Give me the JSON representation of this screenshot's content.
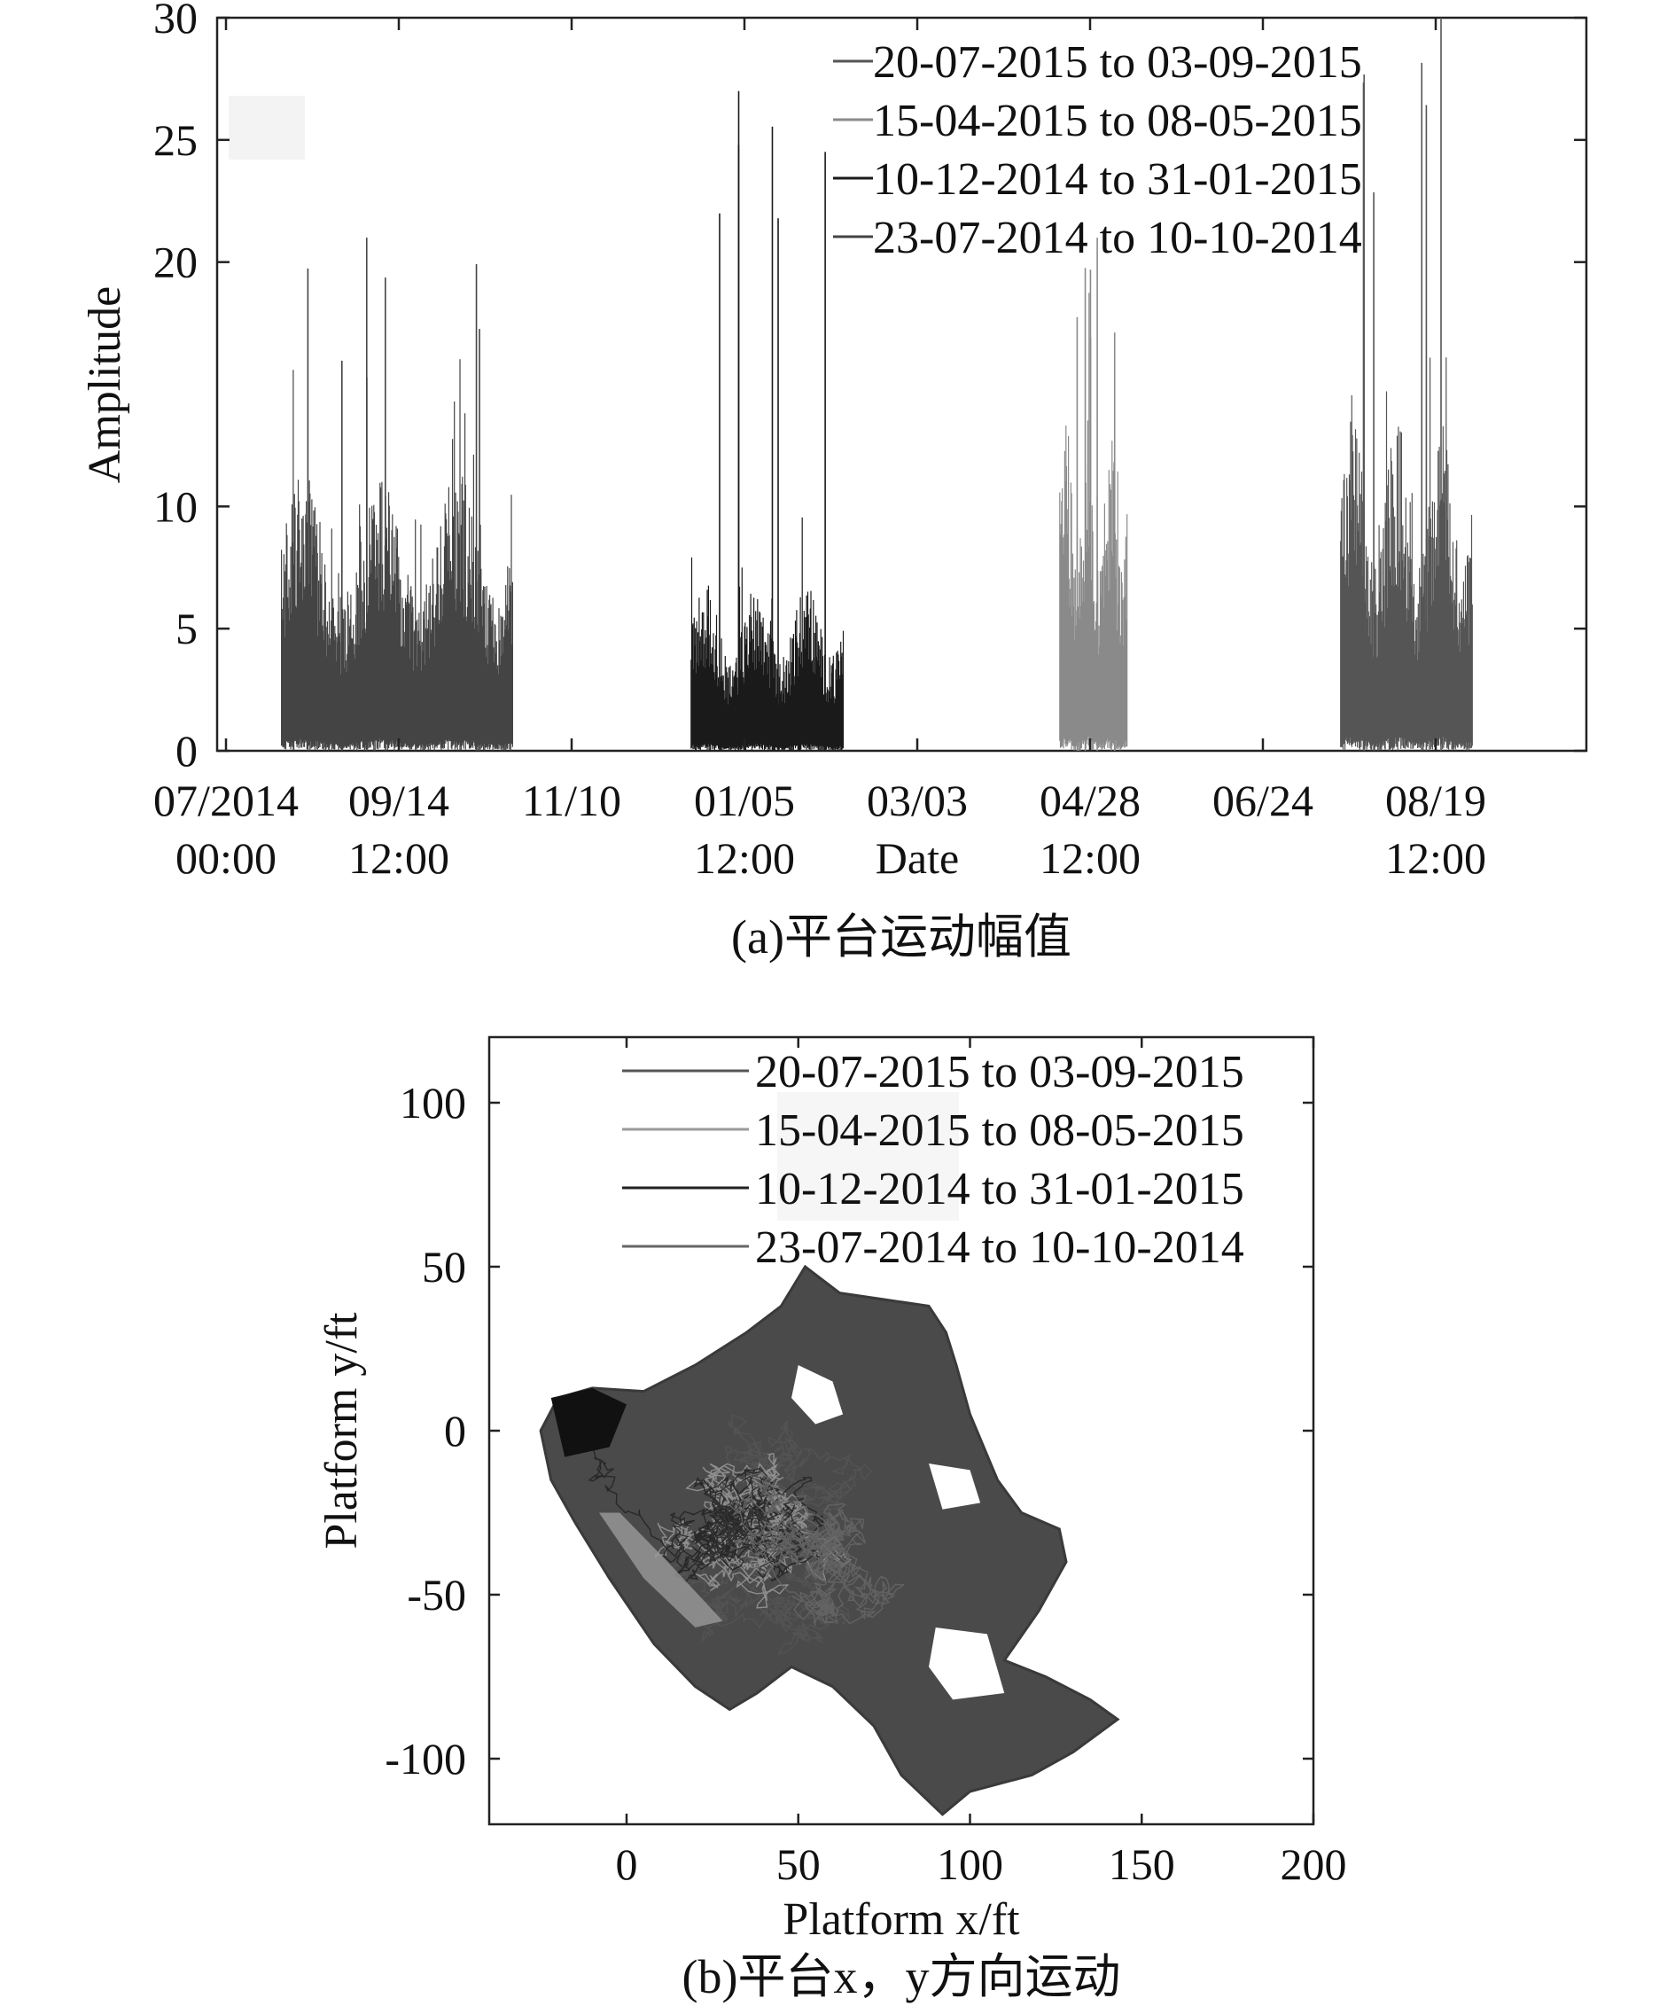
{
  "chart_data": [
    {
      "type": "line",
      "panel": "a",
      "caption": "(a)平台运动幅值",
      "xlabel": "Date",
      "ylabel": "Amplitude",
      "ylim": [
        0,
        30
      ],
      "yticks": [
        0,
        5,
        10,
        20,
        25,
        30
      ],
      "xticks": [
        {
          "line1": "07/2014",
          "line2": "00:00"
        },
        {
          "line1": "09/14",
          "line2": "12:00"
        },
        {
          "line1": "11/10",
          "line2": ""
        },
        {
          "line1": "01/05",
          "line2": "12:00"
        },
        {
          "line1": "03/03",
          "line2": "Date"
        },
        {
          "line1": "04/28",
          "line2": "12:00"
        },
        {
          "line1": "06/24",
          "line2": ""
        },
        {
          "line1": "08/19",
          "line2": "12:00"
        }
      ],
      "legend_position": "top-right",
      "series": [
        {
          "name": "20-07-2015 to 03-09-2015",
          "color": "#555555",
          "start": "2015-07-20",
          "end": "2015-09-03",
          "typical_max": 12,
          "peak": 30
        },
        {
          "name": "15-04-2015 to 08-05-2015",
          "color": "#8a8a8a",
          "start": "2015-04-15",
          "end": "2015-05-08",
          "typical_max": 12,
          "peak": 21
        },
        {
          "name": "10-12-2014 to 31-01-2015",
          "color": "#1a1a1a",
          "start": "2014-12-10",
          "end": "2015-01-31",
          "typical_max": 6,
          "peak": 27
        },
        {
          "name": "23-07-2014 to 10-10-2014",
          "color": "#444444",
          "start": "2014-07-23",
          "end": "2014-10-10",
          "typical_max": 10,
          "peak": 21
        }
      ]
    },
    {
      "type": "scatter",
      "panel": "b",
      "caption": "(b)平台x，y方向运动",
      "xlabel": "Platform x/ft",
      "ylabel": "Platform y/ft",
      "xlim": [
        -40,
        200
      ],
      "ylim": [
        -120,
        120
      ],
      "xticks": [
        0,
        50,
        100,
        150,
        200
      ],
      "yticks": [
        100,
        50,
        0,
        -50,
        -100
      ],
      "legend_position": "top-right",
      "series": [
        {
          "name": "20-07-2015 to 03-09-2015",
          "color": "#555555"
        },
        {
          "name": "15-04-2015 to 08-05-2015",
          "color": "#999999"
        },
        {
          "name": "10-12-2014 to 31-01-2015",
          "color": "#222222"
        },
        {
          "name": "23-07-2014 to 10-10-2014",
          "color": "#666666"
        }
      ],
      "trajectory_envelope": [
        [
          -20,
          10
        ],
        [
          -10,
          13
        ],
        [
          5,
          12
        ],
        [
          20,
          20
        ],
        [
          35,
          30
        ],
        [
          45,
          38
        ],
        [
          52,
          50
        ],
        [
          62,
          42
        ],
        [
          75,
          40
        ],
        [
          88,
          38
        ],
        [
          93,
          30
        ],
        [
          96,
          20
        ],
        [
          100,
          5
        ],
        [
          108,
          -15
        ],
        [
          115,
          -25
        ],
        [
          126,
          -30
        ],
        [
          128,
          -40
        ],
        [
          120,
          -55
        ],
        [
          110,
          -70
        ],
        [
          122,
          -75
        ],
        [
          135,
          -82
        ],
        [
          143,
          -88
        ],
        [
          130,
          -98
        ],
        [
          118,
          -105
        ],
        [
          100,
          -110
        ],
        [
          92,
          -117
        ],
        [
          80,
          -105
        ],
        [
          72,
          -90
        ],
        [
          60,
          -78
        ],
        [
          48,
          -72
        ],
        [
          38,
          -80
        ],
        [
          30,
          -85
        ],
        [
          20,
          -78
        ],
        [
          8,
          -65
        ],
        [
          -5,
          -45
        ],
        [
          -15,
          -28
        ],
        [
          -22,
          -15
        ],
        [
          -25,
          0
        ],
        [
          -20,
          10
        ]
      ]
    }
  ]
}
